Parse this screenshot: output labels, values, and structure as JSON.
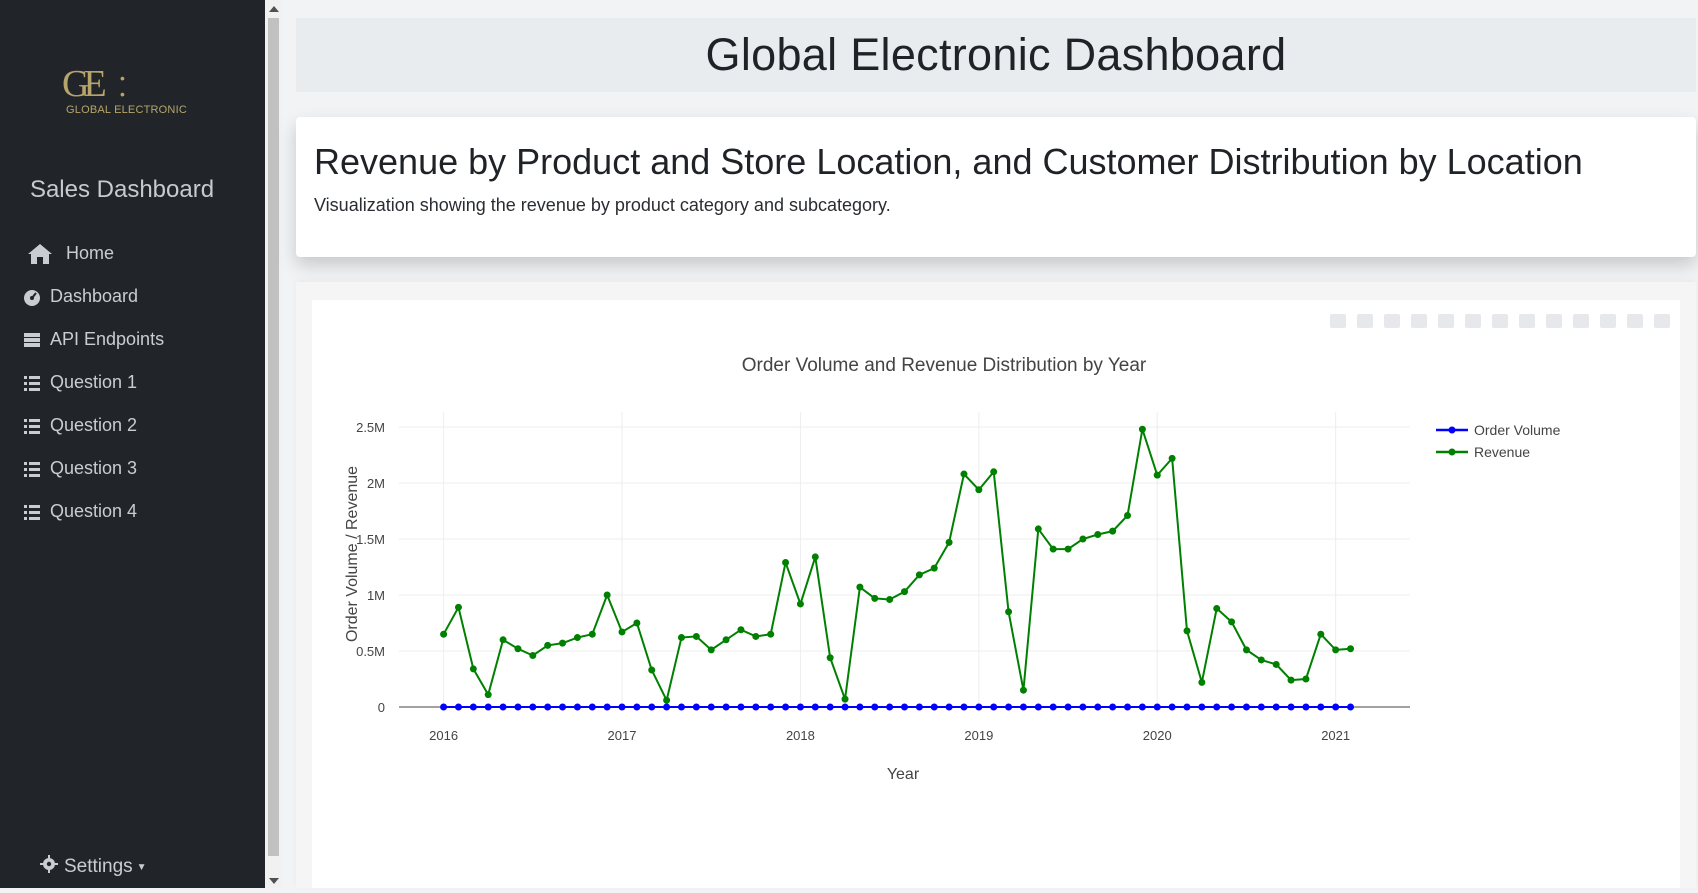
{
  "sidebar": {
    "logo_text": "GLOBAL ELECTRONIC",
    "logo_mark": "GE",
    "title": "Sales Dashboard",
    "items": [
      {
        "label": "Home",
        "icon": "home-icon"
      },
      {
        "label": "Dashboard",
        "icon": "dashboard-icon"
      },
      {
        "label": "API Endpoints",
        "icon": "server-icon"
      },
      {
        "label": "Question 1",
        "icon": "list-icon"
      },
      {
        "label": "Question 2",
        "icon": "list-icon"
      },
      {
        "label": "Question 3",
        "icon": "list-icon"
      },
      {
        "label": "Question 4",
        "icon": "list-icon"
      }
    ],
    "settings_label": "Settings"
  },
  "header": {
    "title": "Global Electronic Dashboard"
  },
  "card": {
    "title": "Revenue by Product and Store Location, and Customer Distribution by Location",
    "description": "Visualization showing the revenue by product category and subcategory."
  },
  "colors": {
    "order_volume": "#0000ff",
    "revenue": "#008000",
    "sidebar": "#212529"
  },
  "chart_data": {
    "type": "line",
    "title": "Order Volume and Revenue Distribution by Year",
    "xlabel": "Year",
    "ylabel": "Order Volume / Revenue",
    "x_ticks": [
      "2016",
      "2017",
      "2018",
      "2019",
      "2020",
      "2021"
    ],
    "y_ticks": [
      "0",
      "0.5M",
      "1M",
      "1.5M",
      "2M",
      "2.5M"
    ],
    "ylim": [
      0,
      2500000
    ],
    "xlim": [
      "2015-10",
      "2021-06"
    ],
    "legend_position": "top-right",
    "grid": true,
    "x": [
      "2016-01",
      "2016-02",
      "2016-03",
      "2016-04",
      "2016-05",
      "2016-06",
      "2016-07",
      "2016-08",
      "2016-09",
      "2016-10",
      "2016-11",
      "2016-12",
      "2017-01",
      "2017-02",
      "2017-03",
      "2017-04",
      "2017-05",
      "2017-06",
      "2017-07",
      "2017-08",
      "2017-09",
      "2017-10",
      "2017-11",
      "2017-12",
      "2018-01",
      "2018-02",
      "2018-03",
      "2018-04",
      "2018-05",
      "2018-06",
      "2018-07",
      "2018-08",
      "2018-09",
      "2018-10",
      "2018-11",
      "2018-12",
      "2019-01",
      "2019-02",
      "2019-03",
      "2019-04",
      "2019-05",
      "2019-06",
      "2019-07",
      "2019-08",
      "2019-09",
      "2019-10",
      "2019-11",
      "2019-12",
      "2020-01",
      "2020-02",
      "2020-03",
      "2020-04",
      "2020-05",
      "2020-06",
      "2020-07",
      "2020-08",
      "2020-09",
      "2020-10",
      "2020-11",
      "2020-12",
      "2021-01",
      "2021-02"
    ],
    "series": [
      {
        "name": "Order Volume",
        "values": [
          0,
          0,
          0,
          0,
          0,
          0,
          0,
          0,
          0,
          0,
          0,
          0,
          0,
          0,
          0,
          0,
          0,
          0,
          0,
          0,
          0,
          0,
          0,
          0,
          0,
          0,
          0,
          0,
          0,
          0,
          0,
          0,
          0,
          0,
          0,
          0,
          0,
          0,
          0,
          0,
          0,
          0,
          0,
          0,
          0,
          0,
          0,
          0,
          0,
          0,
          0,
          0,
          0,
          0,
          0,
          0,
          0,
          0,
          0,
          0,
          0,
          0
        ]
      },
      {
        "name": "Revenue",
        "values": [
          650000,
          890000,
          340000,
          110000,
          600000,
          520000,
          460000,
          550000,
          570000,
          620000,
          650000,
          1000000,
          670000,
          750000,
          330000,
          60000,
          620000,
          630000,
          510000,
          600000,
          690000,
          630000,
          650000,
          1290000,
          920000,
          1340000,
          440000,
          70000,
          1070000,
          970000,
          960000,
          1030000,
          1180000,
          1240000,
          1470000,
          2080000,
          1940000,
          2100000,
          850000,
          150000,
          1590000,
          1410000,
          1410000,
          1500000,
          1540000,
          1570000,
          1710000,
          2480000,
          2070000,
          2220000,
          680000,
          220000,
          880000,
          760000,
          510000,
          420000,
          380000,
          240000,
          250000,
          650000,
          510000,
          520000
        ]
      }
    ]
  }
}
